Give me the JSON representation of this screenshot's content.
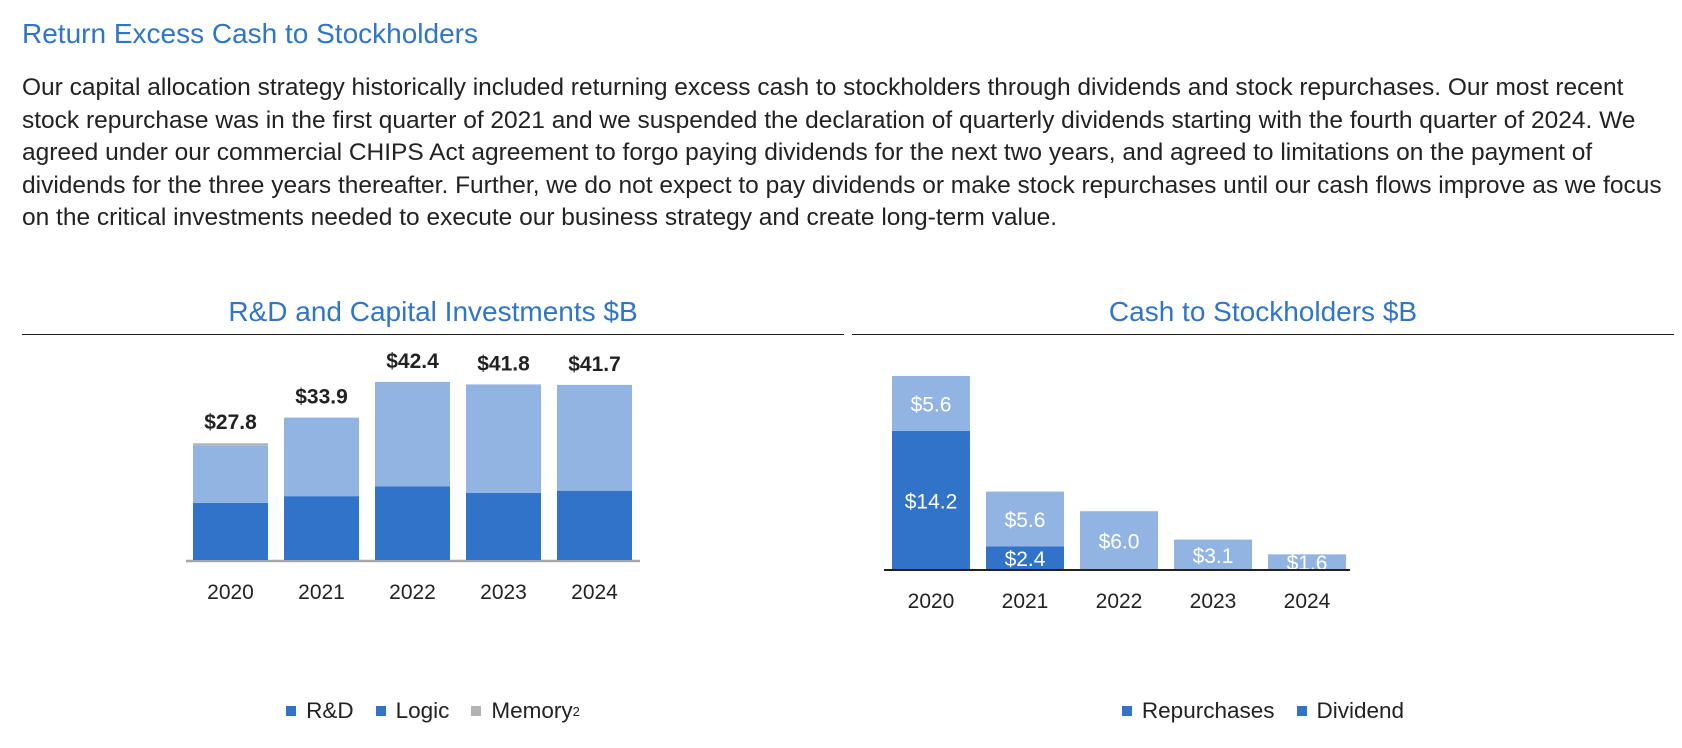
{
  "page": {
    "title": "Return Excess Cash to Stockholders",
    "body": "Our capital allocation strategy historically included returning excess cash to stockholders through dividends and stock repurchases. Our most recent stock repurchase was in the first quarter of 2021 and we suspended the declaration of quarterly dividends starting with the fourth quarter of 2024. We agreed under our commercial CHIPS Act agreement to forgo paying dividends for the next two years, and agreed to limitations on the payment of dividends for the three years thereafter. Further, we do not expect to pay dividends or make stock repurchases until our cash flows improve as we focus on the critical investments needed to execute our business strategy and create long-term value."
  },
  "chart_data": [
    {
      "type": "bar",
      "stacked": true,
      "title": "R&D and Capital Investments $B",
      "categories": [
        "2020",
        "2021",
        "2022",
        "2023",
        "2024"
      ],
      "series": [
        {
          "name": "R&D",
          "color": "#3173c8",
          "values": [
            13.6,
            15.2,
            17.5,
            16.0,
            16.5
          ]
        },
        {
          "name": "Logic",
          "color": "#92b4e3",
          "values": [
            13.7,
            18.7,
            24.9,
            25.8,
            25.2
          ]
        },
        {
          "name": "Memory",
          "legend_sup": "2",
          "color": "#b3b3b3",
          "values": [
            0.5,
            0,
            0,
            0,
            0
          ]
        }
      ],
      "totals": [
        "$27.8",
        "$33.9",
        "$42.4",
        "$41.8",
        "$41.7"
      ],
      "grid": false,
      "legend": "bottom"
    },
    {
      "type": "bar",
      "stacked": true,
      "title": "Cash to Stockholders $B",
      "categories": [
        "2020",
        "2021",
        "2022",
        "2023",
        "2024"
      ],
      "series": [
        {
          "name": "Repurchases",
          "color": "#3173c8",
          "values": [
            14.2,
            2.4,
            0,
            0,
            0
          ],
          "labels": [
            "$14.2",
            "$2.4",
            "",
            "",
            ""
          ]
        },
        {
          "name": "Dividend",
          "color": "#92b4e3",
          "values": [
            5.6,
            5.6,
            6.0,
            3.1,
            1.6
          ],
          "labels": [
            "$5.6",
            "$5.6",
            "$6.0",
            "$3.1",
            "$1.6"
          ]
        }
      ],
      "grid": false,
      "legend": "bottom"
    }
  ]
}
